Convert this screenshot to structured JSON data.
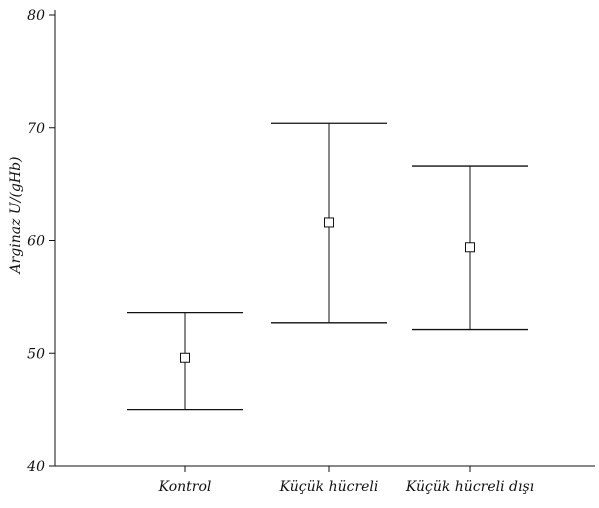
{
  "chart_data": {
    "type": "errorbar",
    "title": "",
    "xlabel": "",
    "ylabel": "Arginaz U/(gHb)",
    "ylim": [
      40,
      80
    ],
    "yticks": [
      40,
      50,
      60,
      70,
      80
    ],
    "grid": false,
    "categories": [
      "Kontrol",
      "Küçük hücreli",
      "Küçük hücreli dışı"
    ],
    "series": [
      {
        "mean": [
          49.6,
          61.6,
          59.4
        ],
        "lower": [
          45.0,
          52.7,
          52.1
        ],
        "upper": [
          53.6,
          70.4,
          66.6
        ]
      }
    ]
  }
}
